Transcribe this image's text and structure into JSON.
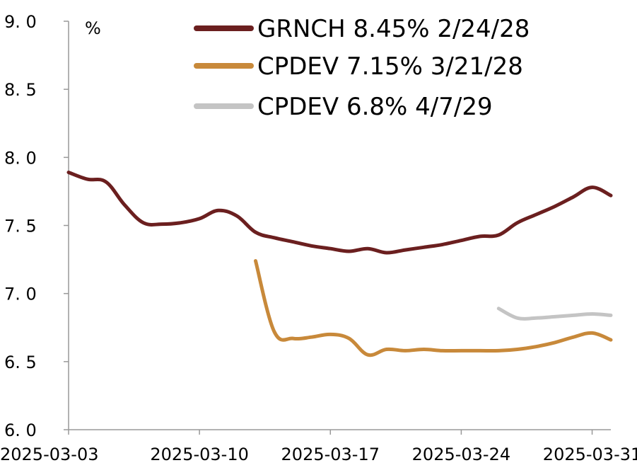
{
  "chart_data": {
    "type": "line",
    "title": "",
    "xlabel": "",
    "ylabel": "",
    "unit_label": "%",
    "xlim": [
      "2025-03-03",
      "2025-04-01"
    ],
    "ylim": [
      6.0,
      9.0
    ],
    "y_ticks": [
      "6. 0",
      "6. 5",
      "7. 0",
      "7. 5",
      "8. 0",
      "8. 5",
      "9. 0"
    ],
    "x_ticks": [
      "2025-03-03",
      "2025-03-10",
      "2025-03-17",
      "2025-03-24",
      "2025-03-31"
    ],
    "grid": false,
    "legend_position": "top-right",
    "series": [
      {
        "name": "GRNCH 8.45% 2/24/28",
        "color": "#6b1f1f",
        "points": [
          [
            "2025-03-03",
            7.89
          ],
          [
            "2025-03-04",
            7.84
          ],
          [
            "2025-03-05",
            7.82
          ],
          [
            "2025-03-06",
            7.65
          ],
          [
            "2025-03-07",
            7.52
          ],
          [
            "2025-03-08",
            7.51
          ],
          [
            "2025-03-09",
            7.52
          ],
          [
            "2025-03-10",
            7.55
          ],
          [
            "2025-03-11",
            7.61
          ],
          [
            "2025-03-12",
            7.57
          ],
          [
            "2025-03-13",
            7.45
          ],
          [
            "2025-03-14",
            7.41
          ],
          [
            "2025-03-15",
            7.38
          ],
          [
            "2025-03-16",
            7.35
          ],
          [
            "2025-03-17",
            7.33
          ],
          [
            "2025-03-18",
            7.31
          ],
          [
            "2025-03-19",
            7.33
          ],
          [
            "2025-03-20",
            7.3
          ],
          [
            "2025-03-21",
            7.32
          ],
          [
            "2025-03-22",
            7.34
          ],
          [
            "2025-03-23",
            7.36
          ],
          [
            "2025-03-24",
            7.39
          ],
          [
            "2025-03-25",
            7.42
          ],
          [
            "2025-03-26",
            7.43
          ],
          [
            "2025-03-27",
            7.52
          ],
          [
            "2025-03-28",
            7.58
          ],
          [
            "2025-03-29",
            7.64
          ],
          [
            "2025-03-30",
            7.71
          ],
          [
            "2025-03-31",
            7.78
          ],
          [
            "2025-04-01",
            7.72
          ]
        ]
      },
      {
        "name": "CPDEV 7.15% 3/21/28",
        "color": "#c8893a",
        "points": [
          [
            "2025-03-13",
            7.24
          ],
          [
            "2025-03-14",
            6.72
          ],
          [
            "2025-03-15",
            6.67
          ],
          [
            "2025-03-16",
            6.68
          ],
          [
            "2025-03-17",
            6.7
          ],
          [
            "2025-03-18",
            6.67
          ],
          [
            "2025-03-19",
            6.55
          ],
          [
            "2025-03-20",
            6.59
          ],
          [
            "2025-03-21",
            6.58
          ],
          [
            "2025-03-22",
            6.59
          ],
          [
            "2025-03-23",
            6.58
          ],
          [
            "2025-03-24",
            6.58
          ],
          [
            "2025-03-25",
            6.58
          ],
          [
            "2025-03-26",
            6.58
          ],
          [
            "2025-03-27",
            6.59
          ],
          [
            "2025-03-28",
            6.61
          ],
          [
            "2025-03-29",
            6.64
          ],
          [
            "2025-03-30",
            6.68
          ],
          [
            "2025-03-31",
            6.71
          ],
          [
            "2025-04-01",
            6.66
          ]
        ]
      },
      {
        "name": "CPDEV 6.8% 4/7/29",
        "color": "#c4c4c4",
        "points": [
          [
            "2025-03-26",
            6.89
          ],
          [
            "2025-03-27",
            6.82
          ],
          [
            "2025-03-28",
            6.82
          ],
          [
            "2025-03-29",
            6.83
          ],
          [
            "2025-03-30",
            6.84
          ],
          [
            "2025-03-31",
            6.85
          ],
          [
            "2025-04-01",
            6.84
          ]
        ]
      }
    ]
  }
}
